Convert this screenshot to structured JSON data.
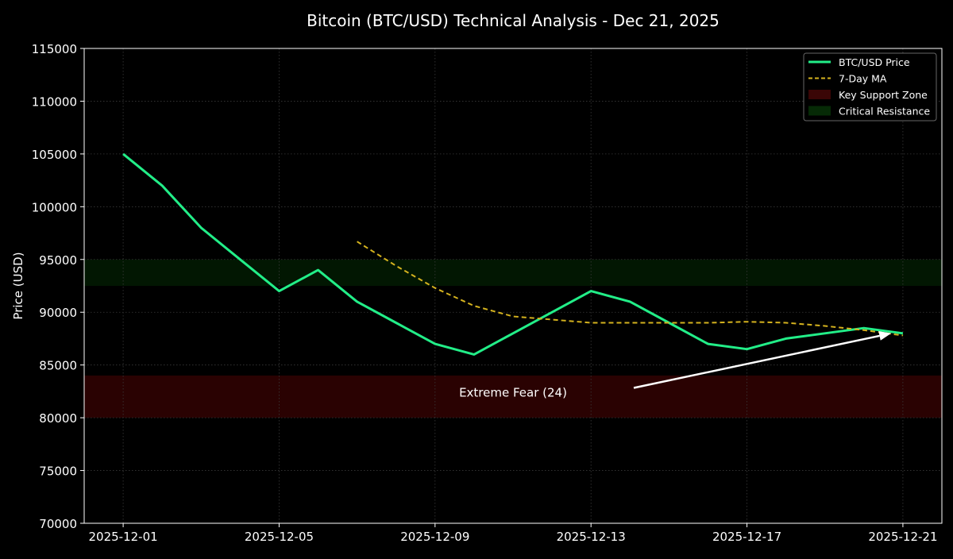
{
  "chart_data": {
    "type": "line",
    "title": "Bitcoin (BTC/USD) Technical Analysis - Dec 21, 2025",
    "xlabel": "",
    "ylabel": "Price (USD)",
    "ylim": [
      70000,
      115000
    ],
    "xlim": [
      "2025-11-30",
      "2025-12-22"
    ],
    "x_ticks": [
      "2025-12-01",
      "2025-12-05",
      "2025-12-09",
      "2025-12-13",
      "2025-12-17",
      "2025-12-21"
    ],
    "y_ticks": [
      70000,
      75000,
      80000,
      85000,
      90000,
      95000,
      100000,
      105000,
      110000,
      115000
    ],
    "grid": true,
    "legend_position": "top-right",
    "series": [
      {
        "name": "BTC/USD Price",
        "color": "#22ee88",
        "style": "solid",
        "x": [
          "2025-12-01",
          "2025-12-02",
          "2025-12-03",
          "2025-12-04",
          "2025-12-05",
          "2025-12-06",
          "2025-12-07",
          "2025-12-08",
          "2025-12-09",
          "2025-12-10",
          "2025-12-11",
          "2025-12-12",
          "2025-12-13",
          "2025-12-14",
          "2025-12-15",
          "2025-12-16",
          "2025-12-17",
          "2025-12-18",
          "2025-12-19",
          "2025-12-20",
          "2025-12-21"
        ],
        "values": [
          105000,
          102000,
          98000,
          95000,
          92000,
          94000,
          91000,
          89000,
          87000,
          86000,
          88000,
          90000,
          92000,
          91000,
          89000,
          87000,
          86500,
          87500,
          88000,
          88500,
          88000
        ]
      },
      {
        "name": "7-Day MA",
        "color": "#d4b21e",
        "style": "dashed",
        "x": [
          "2025-12-07",
          "2025-12-08",
          "2025-12-09",
          "2025-12-10",
          "2025-12-11",
          "2025-12-12",
          "2025-12-13",
          "2025-12-14",
          "2025-12-15",
          "2025-12-16",
          "2025-12-17",
          "2025-12-18",
          "2025-12-19",
          "2025-12-20",
          "2025-12-21"
        ],
        "values": [
          96700,
          94400,
          92300,
          90600,
          89600,
          89300,
          89000,
          89000,
          89000,
          89000,
          89100,
          89000,
          88700,
          88300,
          87800
        ]
      }
    ],
    "zones": [
      {
        "name": "Key Support Zone",
        "range": [
          80000,
          84000
        ],
        "color": "#2a0202"
      },
      {
        "name": "Critical Resistance",
        "range": [
          92500,
          95000
        ],
        "color": "#021702"
      }
    ],
    "annotations": [
      {
        "text": "Extreme Fear (24)",
        "text_at": [
          "2025-12-11",
          82000
        ],
        "arrow_to": [
          "2025-12-20.7",
          88000
        ]
      }
    ]
  }
}
